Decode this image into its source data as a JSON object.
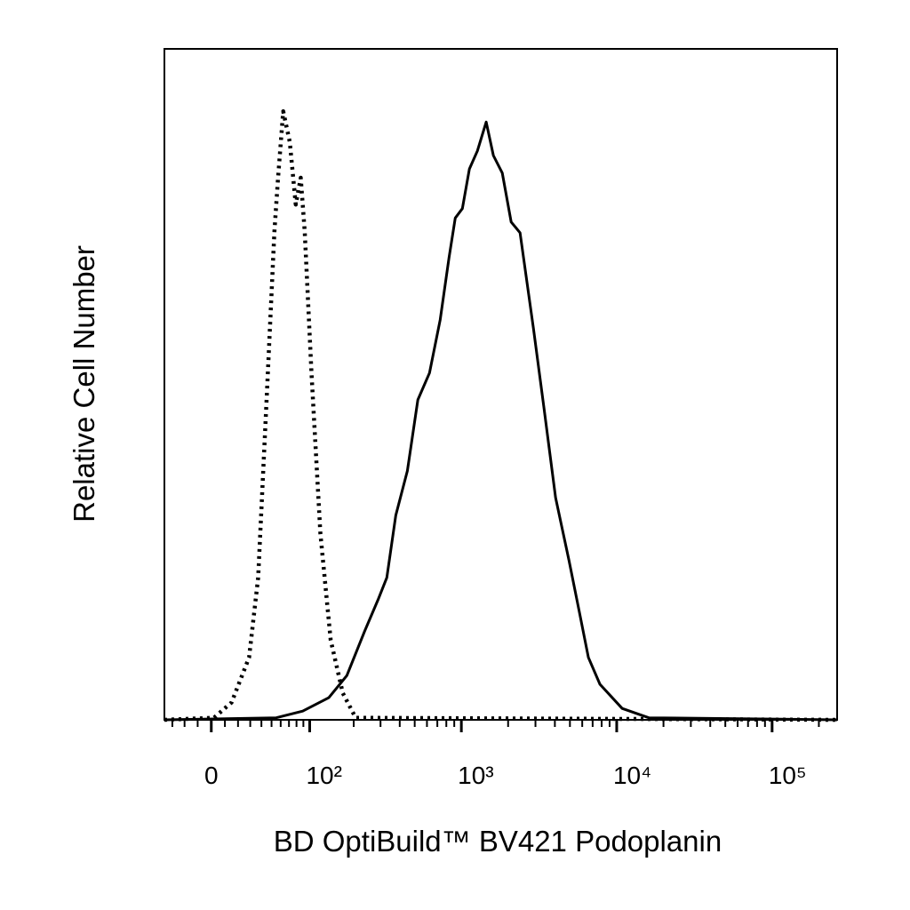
{
  "chart_data": {
    "type": "histogram_overlay",
    "x_label": "BD OptiBuild™ BV421 Podoplanin",
    "y_label": "Relative Cell Number",
    "xscale": "biexponential",
    "xlim": [
      -37,
      262144
    ],
    "ylim": [
      0,
      100
    ],
    "xticks": [
      0,
      {
        "value": 100,
        "label": "10²"
      },
      {
        "value": 1000,
        "label": "10³"
      },
      {
        "value": 10000,
        "label": "10⁴"
      },
      {
        "value": 100000,
        "label": "10⁵"
      }
    ],
    "xminorticks": [
      -30,
      -20,
      -10,
      10,
      20,
      30,
      40,
      50,
      60,
      70,
      80,
      90,
      200,
      300,
      400,
      500,
      600,
      700,
      800,
      900,
      2000,
      3000,
      4000,
      5000,
      6000,
      7000,
      8000,
      9000,
      20000,
      30000,
      40000,
      50000,
      60000,
      70000,
      80000,
      90000,
      200000
    ],
    "series": [
      {
        "color": "#000000",
        "style": "dotted",
        "x": [
          -37,
          2,
          15,
          29,
          37,
          45,
          53,
          57,
          63,
          71,
          79,
          86,
          92,
          103,
          119,
          140,
          169,
          206,
          262144
        ],
        "values": [
          0,
          0.3,
          2.6,
          9.3,
          21.2,
          47.7,
          72.8,
          80.8,
          90.7,
          86.1,
          76.8,
          80.8,
          72.8,
          51.7,
          27.8,
          11.9,
          4.0,
          0.3,
          0
        ]
      },
      {
        "color": "#000000",
        "style": "solid",
        "x": [
          -37,
          55,
          89,
          136,
          180,
          236,
          289,
          330,
          377,
          448,
          524,
          623,
          730,
          833,
          913,
          1015,
          1127,
          1269,
          1446,
          1607,
          1835,
          2094,
          2388,
          2911,
          3406,
          4041,
          4925,
          5768,
          6574,
          7800,
          10835,
          16084,
          262144
        ],
        "values": [
          0,
          0.3,
          1.3,
          3.3,
          6.6,
          13.2,
          17.9,
          21.2,
          30.5,
          37.1,
          47.7,
          51.7,
          59.6,
          68.9,
          74.8,
          76.2,
          82.1,
          84.8,
          89.1,
          84.1,
          81.5,
          74.2,
          72.6,
          58.3,
          46.4,
          33.1,
          23.8,
          15.9,
          9.3,
          5.3,
          1.7,
          0.3,
          0
        ]
      }
    ]
  }
}
